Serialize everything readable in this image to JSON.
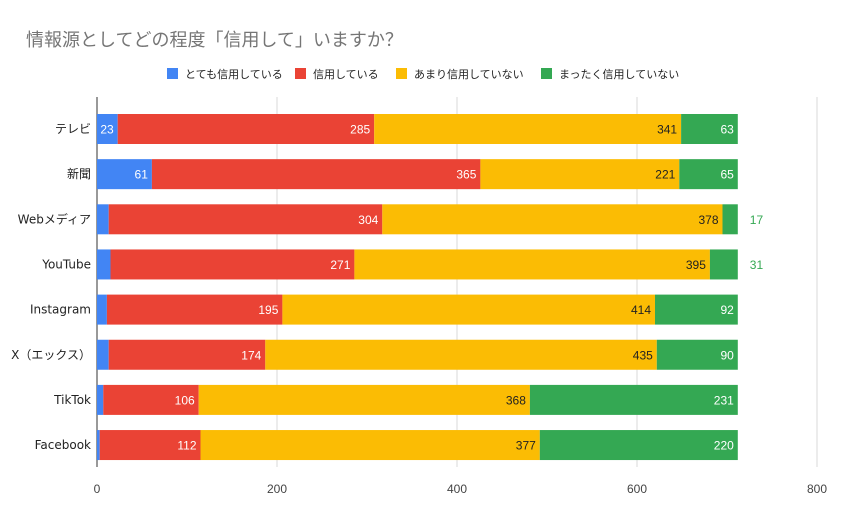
{
  "chart_data": {
    "type": "bar",
    "orientation": "horizontal",
    "stacked": true,
    "title": "情報源としてどの程度「信用して」いますか？",
    "xlabel": "",
    "ylabel": "",
    "xlim": [
      0,
      800
    ],
    "x_ticks": [
      0,
      200,
      400,
      600,
      800
    ],
    "grid": true,
    "legend_position": "top",
    "categories": [
      "テレビ",
      "新聞",
      "Webメディア",
      "YouTube",
      "Instagram",
      "X（エックス）",
      "TikTok",
      "Facebook"
    ],
    "series": [
      {
        "name": "とても信用している",
        "color": "#4285F4",
        "values": [
          23,
          61,
          13,
          15,
          11,
          13,
          7,
          3
        ]
      },
      {
        "name": "信用している",
        "color": "#EA4335",
        "values": [
          285,
          365,
          304,
          271,
          195,
          174,
          106,
          112
        ]
      },
      {
        "name": "あまり信用していない",
        "color": "#FBBC04",
        "values": [
          341,
          221,
          378,
          395,
          414,
          435,
          368,
          377
        ]
      },
      {
        "name": "まったく信用していない",
        "color": "#34A853",
        "values": [
          63,
          65,
          17,
          31,
          92,
          90,
          231,
          220
        ]
      }
    ]
  }
}
